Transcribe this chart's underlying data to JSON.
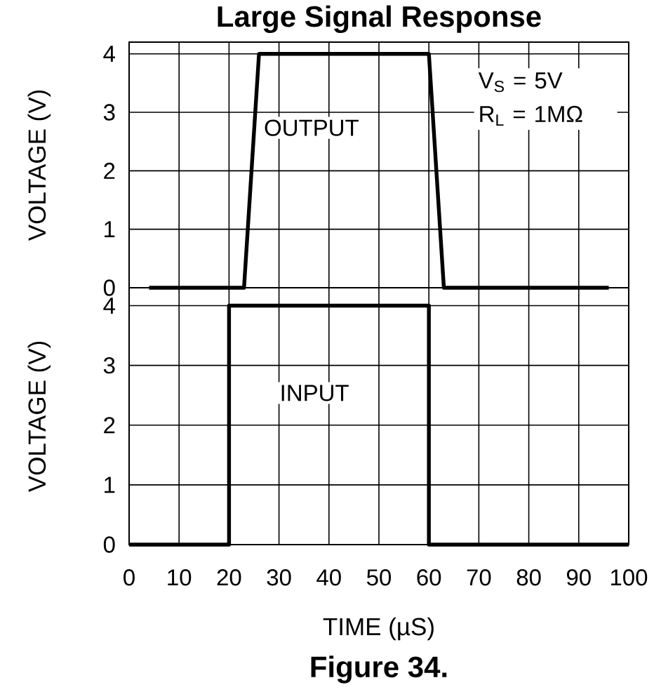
{
  "chart_data": [
    {
      "type": "line",
      "title": "Large Signal Response",
      "ylabel": "VOLTAGE (V)",
      "annotations": [
        "V$_{S}$ = 5V",
        "R$_{L}$ = 1MΩ"
      ],
      "series": [
        {
          "name": "OUTPUT",
          "color": "#000000",
          "x": [
            4,
            23,
            26,
            60,
            63,
            96
          ],
          "values": [
            0,
            0,
            4,
            4,
            0,
            0
          ]
        }
      ],
      "xlim": [
        0,
        100
      ],
      "xticks": [
        0,
        10,
        20,
        30,
        40,
        50,
        60,
        70,
        80,
        90,
        100
      ],
      "ylim": [
        0,
        4.2
      ],
      "yticks": [
        0,
        1,
        2,
        3,
        4
      ],
      "grid": true,
      "tick_labels": "y"
    },
    {
      "type": "line",
      "xlabel": "TIME (µS)",
      "ylabel": "VOLTAGE (V)",
      "annotations": [
        "Figure 34."
      ],
      "series": [
        {
          "name": "INPUT",
          "color": "#000000",
          "x": [
            0,
            20,
            20,
            60,
            60,
            100
          ],
          "values": [
            0,
            0,
            4,
            4,
            0,
            0
          ]
        }
      ],
      "xlim": [
        0,
        100
      ],
      "xticks": [
        0,
        10,
        20,
        30,
        40,
        50,
        60,
        70,
        80,
        90,
        100
      ],
      "ylim": [
        0,
        4.3
      ],
      "yticks": [
        0,
        1,
        2,
        3,
        4
      ],
      "grid": true
    }
  ]
}
